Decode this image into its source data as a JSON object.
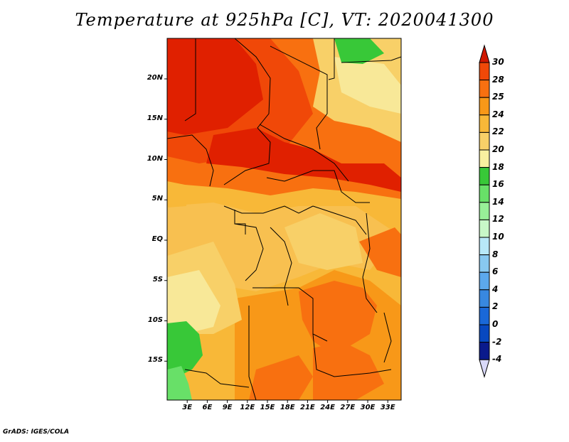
{
  "title": "Temperature at 925hPa [C], VT: 2020041300",
  "footer": "GrADS: IGES/COLA",
  "map": {
    "variable": "Temperature at 925hPa",
    "units": "C",
    "valid_time": "2020041300",
    "lat_labels": [
      "20N",
      "15N",
      "10N",
      "5N",
      "EQ",
      "5S",
      "10S",
      "15S"
    ],
    "lat_values": [
      20,
      15,
      10,
      5,
      0,
      -5,
      -10,
      -15
    ],
    "lon_labels": [
      "3E",
      "6E",
      "9E",
      "12E",
      "15E",
      "18E",
      "21E",
      "24E",
      "27E",
      "30E",
      "33E"
    ],
    "lon_values": [
      3,
      6,
      9,
      12,
      15,
      18,
      21,
      24,
      27,
      30,
      33
    ],
    "lat_range": [
      -20,
      25
    ],
    "lon_range": [
      0,
      35
    ]
  },
  "colorbar": {
    "levels": [
      "30",
      "28",
      "25",
      "24",
      "22",
      "20",
      "18",
      "16",
      "14",
      "12",
      "10",
      "8",
      "6",
      "4",
      "2",
      "0",
      "-2",
      "-4"
    ],
    "colors": [
      "#e02000",
      "#f04808",
      "#f87010",
      "#f89818",
      "#f8b838",
      "#f8d068",
      "#f8f0a0",
      "#38c838",
      "#68e068",
      "#98f098",
      "#c8f8c8",
      "#b8e8f8",
      "#88c8f0",
      "#5ca8ec",
      "#3888e0",
      "#1a68d8",
      "#0848c0",
      "#0a1a8c",
      "#101070"
    ],
    "top_arrow_color": "#d01800",
    "bottom_arrow_color": "#d8d8f8"
  }
}
